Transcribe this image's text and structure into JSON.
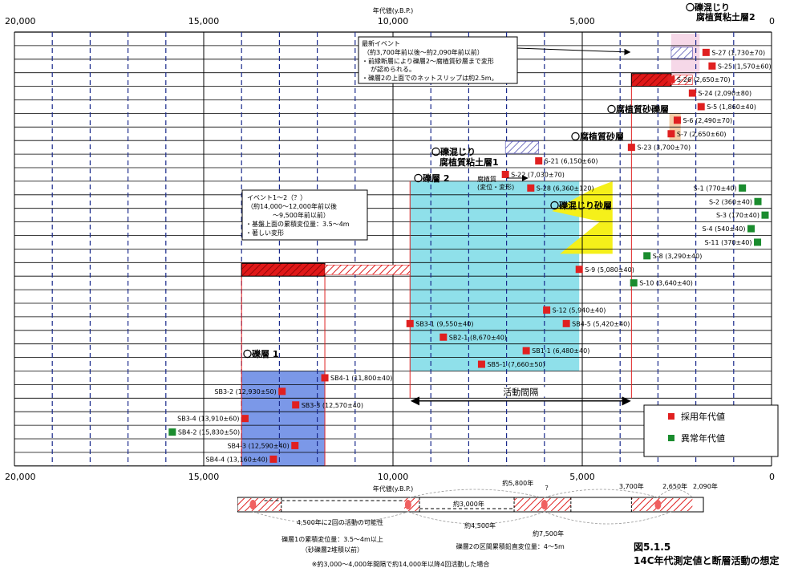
{
  "chart_data": {
    "type": "scatter",
    "axis": {
      "xlabel": "年代値(y.B.P.)",
      "xlim": [
        20000,
        0
      ],
      "major_ticks": [
        20000,
        15000,
        10000,
        5000,
        0
      ],
      "tick_labels": [
        "20,000",
        "15,000",
        "10,000",
        "5,000",
        "0"
      ],
      "minor_ticks": [
        19000,
        18000,
        17000,
        16000,
        14000,
        13000,
        12000,
        11000,
        9000,
        8000,
        7000,
        6000,
        4000,
        3000,
        2000,
        1000
      ],
      "row_count": 32,
      "grid": true,
      "legend_position": "bottom-right"
    },
    "legend": {
      "adopted": {
        "label": "採用年代値",
        "color": "#e02020"
      },
      "anomalous": {
        "label": "異常年代値",
        "color": "#1a8c2e"
      }
    },
    "samples": [
      {
        "label": "S-27 (1,730±70)",
        "value": 1730,
        "row": 1,
        "status": "adopted"
      },
      {
        "label": "S-25 (1,570±60)",
        "value": 1570,
        "row": 2,
        "status": "adopted"
      },
      {
        "label": "S-26 (2,650±70)",
        "value": 2650,
        "row": 3,
        "status": "adopted"
      },
      {
        "label": "S-24 (2,090±80)",
        "value": 2090,
        "row": 4,
        "status": "adopted"
      },
      {
        "label": "S-5 (1,860±40)",
        "value": 1860,
        "row": 5,
        "status": "adopted"
      },
      {
        "label": "S-6 (2,490±70)",
        "value": 2490,
        "row": 6,
        "status": "adopted"
      },
      {
        "label": "S-7 (2,650±60)",
        "value": 2650,
        "row": 7,
        "status": "adopted"
      },
      {
        "label": "S-23 (3,700±70)",
        "value": 3700,
        "row": 8,
        "status": "adopted"
      },
      {
        "label": "S-21 (6,150±60)",
        "value": 6150,
        "row": 9,
        "status": "adopted"
      },
      {
        "label": "S-22 (7,030±70)",
        "value": 7030,
        "row": 10,
        "status": "adopted"
      },
      {
        "label": "S-28 (6,360±120)",
        "value": 6360,
        "row": 11,
        "status": "adopted"
      },
      {
        "label": "S-1 (770±40)",
        "value": 770,
        "row": 11,
        "status": "anomalous"
      },
      {
        "label": "S-2 (360±40)",
        "value": 360,
        "row": 12,
        "status": "anomalous"
      },
      {
        "label": "S-3 (170±40)",
        "value": 170,
        "row": 13,
        "status": "anomalous"
      },
      {
        "label": "S-4 (540±40)",
        "value": 540,
        "row": 14,
        "status": "anomalous"
      },
      {
        "label": "S-11 (370±40)",
        "value": 370,
        "row": 15,
        "status": "anomalous"
      },
      {
        "label": "S-8 (3,290±40)",
        "value": 3290,
        "row": 16,
        "status": "anomalous"
      },
      {
        "label": "S-9 (5,080±40)",
        "value": 5080,
        "row": 17,
        "status": "adopted"
      },
      {
        "label": "S-10 (3,640±40)",
        "value": 3640,
        "row": 18,
        "status": "anomalous"
      },
      {
        "label": "S-12 (5,940±40)",
        "value": 5940,
        "row": 20,
        "status": "adopted"
      },
      {
        "label": "SB3-1 (9,550±40)",
        "value": 9550,
        "row": 21,
        "status": "adopted"
      },
      {
        "label": "SB4-5 (5,420±40)",
        "value": 5420,
        "row": 21,
        "status": "adopted"
      },
      {
        "label": "SB2-1 (8,670±40)",
        "value": 8670,
        "row": 22,
        "status": "adopted"
      },
      {
        "label": "SB1-1 (6,480±40)",
        "value": 6480,
        "row": 23,
        "status": "adopted"
      },
      {
        "label": "SB5-1 (7,660±50)",
        "value": 7660,
        "row": 24,
        "status": "adopted"
      },
      {
        "label": "SB4-1 (11,800±40)",
        "value": 11800,
        "row": 25,
        "status": "adopted"
      },
      {
        "label": "SB3-2 (12,930±50)",
        "value": 12930,
        "row": 26,
        "status": "adopted"
      },
      {
        "label": "SB3-3 (12,570±40)",
        "value": 12570,
        "row": 27,
        "status": "adopted"
      },
      {
        "label": "SB3-4 (13,910±60)",
        "value": 13910,
        "row": 28,
        "status": "adopted"
      },
      {
        "label": "SB4-2 (15,830±50)",
        "value": 15830,
        "row": 29,
        "status": "anomalous"
      },
      {
        "label": "SB4-3 (12,590±40)",
        "value": 12590,
        "row": 30,
        "status": "adopted"
      },
      {
        "label": "SB4-4 (13,160±40)",
        "value": 13160,
        "row": 31,
        "status": "adopted"
      }
    ],
    "regions": [
      {
        "label": "礫層 1",
        "from": 14000,
        "to": 11800,
        "rowFrom": 25,
        "rowTo": 32,
        "color": "#7b98e8"
      },
      {
        "label": "礫層 2",
        "from": 9550,
        "to": 5080,
        "rowFrom": 11,
        "rowTo": 25,
        "color": "#8fe0ea"
      },
      {
        "label": "礫混じり砂層",
        "from": 5800,
        "to": 4200,
        "rowFrom": 11,
        "rowTo": 16,
        "color": "#f5f01a"
      },
      {
        "label": "腐植質砂礫層",
        "from": 2700,
        "to": 2400,
        "rowFrom": 6,
        "rowTo": 8,
        "color": "#f3c79a"
      }
    ],
    "events": [
      {
        "name": "event-1-2",
        "from": 14000,
        "to": 11800,
        "row": 17
      },
      {
        "name": "latest",
        "from": 3700,
        "to": 2650,
        "row": 3
      }
    ],
    "annotations": {
      "event12_title": "イベント1～2（？）",
      "event12_l1": "（約14,000～12,000年前以後",
      "event12_l2": "～9,500年前以前）",
      "event12_l3": "・基盤上面の累積変位量：3.5～4m",
      "event12_l4": "・著しい変形",
      "latest_title": "最新イベント",
      "latest_l1": "（約3,700年前以後～約2,090年前以前）",
      "latest_l2": "・前縁断層により礫層2～腐植質砂層まで変形",
      "latest_l3": "が認められる。",
      "latest_l4": "・礫層2の上面でのネットスリップは約2.5m。",
      "kon_jiri_top_1": "〇礫混じり",
      "kon_jiri_top_2": "腐植質粘土層2",
      "kon_jiri_mid_1": "〇礫混じり",
      "kon_jiri_mid_2": "腐植質粘土層1",
      "fushoku_sareki": "〇腐植質砂礫層",
      "fushoku_suna": "〇腐植質砂層",
      "reki2": "〇礫層 2",
      "fushoku_small_1": "腐植質",
      "fushoku_small_2": "(変位・変形)",
      "reki_suna": "〇礫混じり砂層",
      "reki1": "〇礫層 1",
      "interval": "活動間隔"
    },
    "timeline": {
      "t1": "約5,800年",
      "t2": "？",
      "t3": "3,700年",
      "t4": "2,650年",
      "t5": "2,090年",
      "t6": "約3,000年",
      "t7": "4,500年に2回の活動の可能性",
      "t8": "約4,500年",
      "t9": "約7,500年",
      "t10": "礫層1の累積変位量：3.5～4m以上",
      "t11": "（砂礫層2堆積以前）",
      "t12": "礫層2の区間累積鉛直変位量：4～5m",
      "footnote": "※約3,000～4,000年間隔で約14,000年以降4回活動した場合"
    },
    "figure_number": "図5.1.5",
    "figure_title": "14C年代測定値と断層活動の想定"
  }
}
